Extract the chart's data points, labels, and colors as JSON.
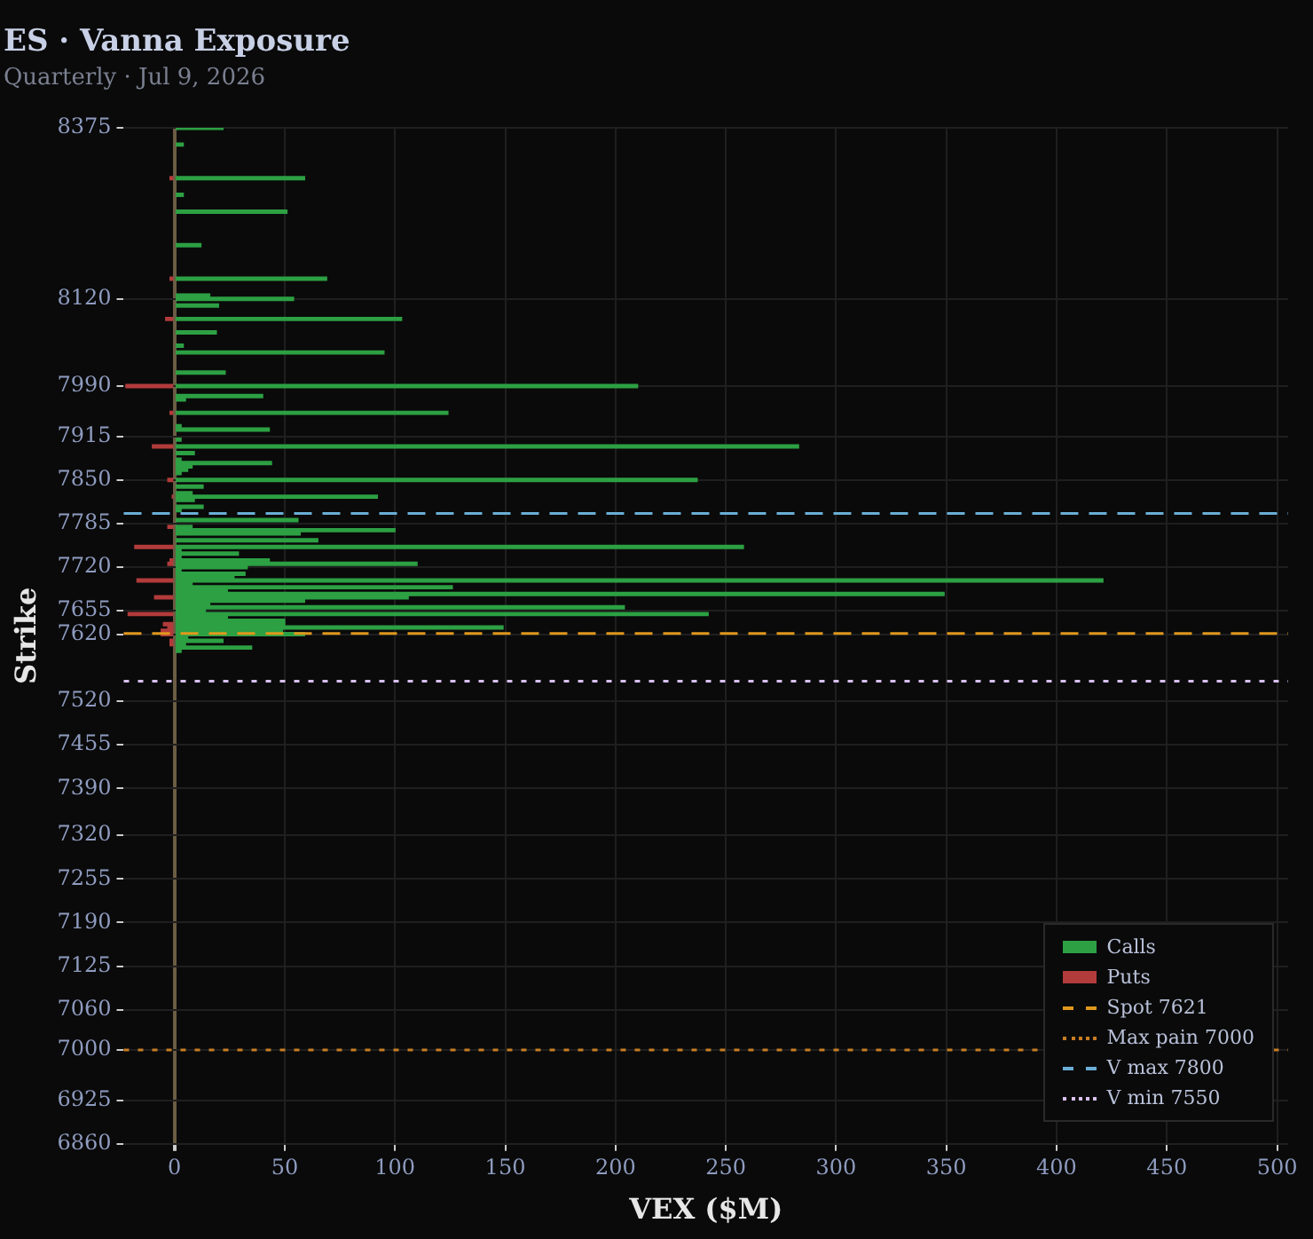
{
  "chart_data": {
    "type": "bar",
    "orientation": "horizontal",
    "title": "ES · Vanna Exposure",
    "subtitle": "Quarterly · Jul 9, 2026",
    "xlabel": "VEX ($M)",
    "ylabel": "Strike",
    "series": [
      {
        "name": "Calls",
        "color": "#2ca043",
        "x": [
          8375,
          8350,
          8300,
          8275,
          8250,
          8200,
          8150,
          8125,
          8120,
          8110,
          8090,
          8070,
          8050,
          8040,
          8010,
          7990,
          7975,
          7970,
          7950,
          7930,
          7925,
          7910,
          7900,
          7890,
          7880,
          7875,
          7870,
          7865,
          7860,
          7850,
          7840,
          7830,
          7825,
          7820,
          7810,
          7805,
          7790,
          7780,
          7775,
          7770,
          7760,
          7750,
          7745,
          7740,
          7735,
          7730,
          7725,
          7720,
          7715,
          7710,
          7705,
          7700,
          7695,
          7690,
          7685,
          7680,
          7675,
          7670,
          7665,
          7660,
          7655,
          7650,
          7645,
          7640,
          7635,
          7630,
          7625,
          7620,
          7615,
          7610,
          7605,
          7600,
          7595
        ],
        "values": [
          22,
          4,
          59,
          4,
          51,
          12,
          69,
          16,
          54,
          20,
          103,
          19,
          4,
          95,
          23,
          210,
          40,
          5,
          124,
          3,
          43,
          3,
          283,
          9,
          3,
          44,
          8,
          6,
          3,
          237,
          13,
          8,
          92,
          9,
          13,
          3,
          56,
          8,
          100,
          57,
          65,
          258,
          3,
          29,
          3,
          43,
          110,
          33,
          3,
          32,
          27,
          421,
          8,
          126,
          24,
          349,
          106,
          59,
          16,
          204,
          14,
          242,
          24,
          50,
          50,
          149,
          49,
          59,
          6,
          22,
          5,
          35,
          3
        ]
      },
      {
        "name": "Puts",
        "color": "#b23b3b",
        "x": [
          8300,
          8150,
          8090,
          7990,
          7950,
          7900,
          7850,
          7825,
          7780,
          7750,
          7730,
          7725,
          7700,
          7675,
          7650,
          7635,
          7630,
          7625,
          7620,
          7610,
          7605
        ],
        "values": [
          -2,
          -2,
          -4,
          -22,
          -2,
          -10,
          -3,
          -1,
          -3,
          -18,
          -2,
          -3,
          -17,
          -9,
          -21,
          -5,
          -3,
          -6,
          -6,
          -2,
          -2
        ]
      }
    ],
    "xlim": [
      -23,
      505
    ],
    "xticks": [
      0,
      50,
      100,
      150,
      200,
      250,
      300,
      350,
      400,
      450,
      500
    ],
    "ylim": [
      6860,
      8375
    ],
    "yticks": [
      6860,
      6925,
      7000,
      7060,
      7125,
      7190,
      7255,
      7320,
      7390,
      7455,
      7520,
      7620,
      7655,
      7720,
      7785,
      7850,
      7915,
      7990,
      8120,
      8375
    ],
    "ref_lines": [
      {
        "axis": "y",
        "value": 7621,
        "label": "Spot 7621",
        "color": "#e0981c",
        "line_style": "dashed"
      },
      {
        "axis": "y",
        "value": 7000,
        "label": "Max pain 7000",
        "color": "#c77d22",
        "line_style": "dotted"
      },
      {
        "axis": "y",
        "value": 7800,
        "label": "V max 7800",
        "color": "#6aaed6",
        "line_style": "dashed"
      },
      {
        "axis": "y",
        "value": 7550,
        "label": "V min 7550",
        "color": "#d8c0f0",
        "line_style": "dotted"
      }
    ],
    "grid": true,
    "legend": "bottom right"
  }
}
